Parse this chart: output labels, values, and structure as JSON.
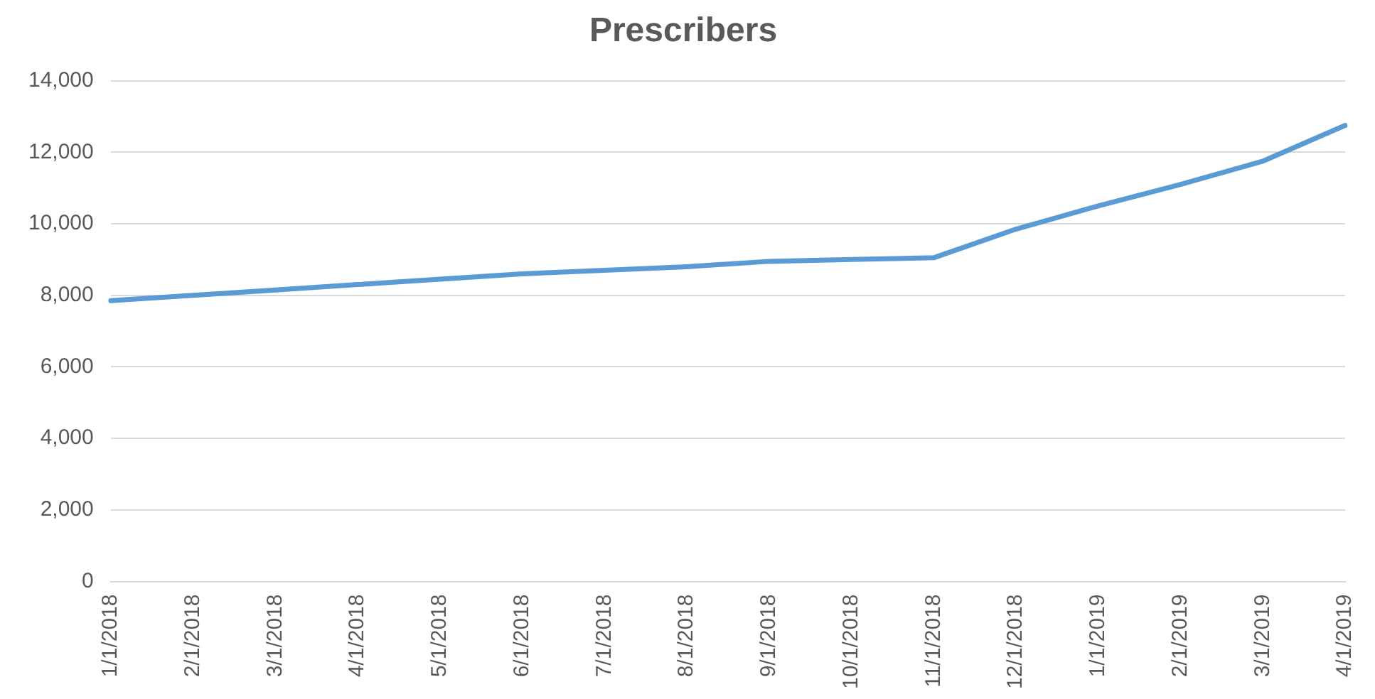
{
  "chart_data": {
    "type": "line",
    "title": "Prescribers",
    "categories": [
      "1/1/2018",
      "2/1/2018",
      "3/1/2018",
      "4/1/2018",
      "5/1/2018",
      "6/1/2018",
      "7/1/2018",
      "8/1/2018",
      "9/1/2018",
      "10/1/2018",
      "11/1/2018",
      "12/1/2018",
      "1/1/2019",
      "2/1/2019",
      "3/1/2019",
      "4/1/2019"
    ],
    "series": [
      {
        "color": "#5b9bd5",
        "values": [
          7850,
          8000,
          8150,
          8300,
          8450,
          8600,
          8700,
          8800,
          8950,
          9000,
          9050,
          9850,
          10500,
          11100,
          11750,
          12750
        ]
      }
    ],
    "ylim": [
      0,
      14000
    ],
    "yticks": [
      {
        "value": 0,
        "label": "0"
      },
      {
        "value": 2000,
        "label": "2,000"
      },
      {
        "value": 4000,
        "label": "4,000"
      },
      {
        "value": 6000,
        "label": "6,000"
      },
      {
        "value": 8000,
        "label": "8,000"
      },
      {
        "value": 10000,
        "label": "10,000"
      },
      {
        "value": 12000,
        "label": "12,000"
      },
      {
        "value": 14000,
        "label": "14,000"
      }
    ],
    "grid": "y",
    "legend": false,
    "marker": "none",
    "line_style": "solid"
  }
}
